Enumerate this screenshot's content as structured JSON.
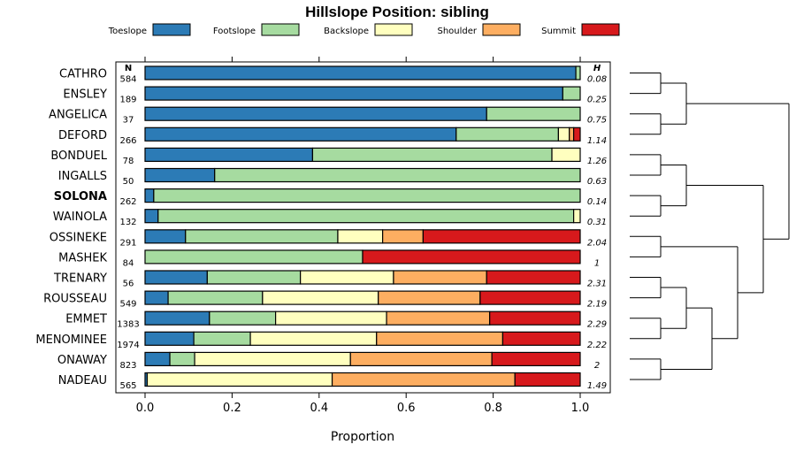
{
  "chart_data": {
    "type": "bar",
    "stacked": true,
    "orientation": "horizontal",
    "title": "Hillslope Position: sibling",
    "xlabel": "Proportion",
    "ylabel": "",
    "xlim": [
      0,
      1
    ],
    "x_ticks": [
      "0.0",
      "0.2",
      "0.4",
      "0.6",
      "0.8",
      "1.0"
    ],
    "n_header": "N",
    "h_header": "H",
    "highlight_category": "SOLONA",
    "legend_position": "top",
    "series": [
      {
        "name": "Toeslope",
        "color": "#2c7bb6"
      },
      {
        "name": "Footslope",
        "color": "#a6dba0"
      },
      {
        "name": "Backslope",
        "color": "#ffffbf"
      },
      {
        "name": "Shoulder",
        "color": "#fdae61"
      },
      {
        "name": "Summit",
        "color": "#d7191c"
      }
    ],
    "categories": [
      "CATHRO",
      "ENSLEY",
      "ANGELICA",
      "DEFORD",
      "BONDUEL",
      "INGALLS",
      "SOLONA",
      "WAINOLA",
      "OSSINEKE",
      "MASHEK",
      "TRENARY",
      "ROUSSEAU",
      "EMMET",
      "MENOMINEE",
      "ONAWAY",
      "NADEAU"
    ],
    "n": [
      "584",
      "189",
      "37",
      "266",
      "78",
      "50",
      "262",
      "132",
      "291",
      "84",
      "56",
      "549",
      "1383",
      "1974",
      "823",
      "565"
    ],
    "h": [
      "0.08",
      "0.25",
      "0.75",
      "1.14",
      "1.26",
      "0.63",
      "0.14",
      "0.31",
      "2.04",
      "1",
      "2.31",
      "2.19",
      "2.29",
      "2.22",
      "2",
      "1.49"
    ],
    "values": [
      [
        0.99,
        0.01,
        0.0,
        0.0,
        0.0
      ],
      [
        0.96,
        0.04,
        0.0,
        0.0,
        0.0
      ],
      [
        0.785,
        0.215,
        0.0,
        0.0,
        0.0
      ],
      [
        0.715,
        0.235,
        0.025,
        0.01,
        0.015
      ],
      [
        0.385,
        0.55,
        0.065,
        0.0,
        0.0
      ],
      [
        0.16,
        0.84,
        0.0,
        0.0,
        0.0
      ],
      [
        0.02,
        0.98,
        0.0,
        0.0,
        0.0
      ],
      [
        0.03,
        0.955,
        0.015,
        0.0,
        0.0
      ],
      [
        0.093,
        0.35,
        0.103,
        0.093,
        0.361
      ],
      [
        0.0,
        0.5,
        0.0,
        0.0,
        0.5
      ],
      [
        0.143,
        0.214,
        0.214,
        0.214,
        0.215
      ],
      [
        0.053,
        0.217,
        0.266,
        0.234,
        0.23
      ],
      [
        0.148,
        0.152,
        0.255,
        0.237,
        0.208
      ],
      [
        0.112,
        0.13,
        0.29,
        0.29,
        0.178
      ],
      [
        0.057,
        0.057,
        0.358,
        0.325,
        0.203
      ],
      [
        0.005,
        0.0,
        0.425,
        0.42,
        0.15
      ]
    ],
    "dendrogram": {
      "type": "hierarchical-clustering",
      "orientation": "right",
      "root": {
        "children": [
          {
            "children": [
              {
                "children": [
                  {
                    "leaf": 0
                  },
                  {
                    "leaf": 1
                  }
                ]
              },
              {
                "children": [
                  {
                    "leaf": 2
                  },
                  {
                    "leaf": 3
                  }
                ]
              }
            ]
          },
          {
            "children": [
              {
                "children": [
                  {
                    "children": [
                      {
                        "leaf": 4
                      },
                      {
                        "leaf": 5
                      }
                    ]
                  },
                  {
                    "children": [
                      {
                        "leaf": 6
                      },
                      {
                        "leaf": 7
                      }
                    ]
                  }
                ]
              },
              {
                "children": [
                  {
                    "children": [
                      {
                        "leaf": 8
                      },
                      {
                        "leaf": 9
                      }
                    ]
                  },
                  {
                    "children": [
                      {
                        "children": [
                          {
                            "children": [
                              {
                                "leaf": 10
                              },
                              {
                                "leaf": 11
                              }
                            ]
                          },
                          {
                            "children": [
                              {
                                "leaf": 12
                              },
                              {
                                "leaf": 13
                              }
                            ]
                          }
                        ]
                      },
                      {
                        "children": [
                          {
                            "leaf": 14
                          },
                          {
                            "leaf": 15
                          }
                        ]
                      }
                    ]
                  }
                ]
              }
            ]
          }
        ]
      }
    }
  }
}
